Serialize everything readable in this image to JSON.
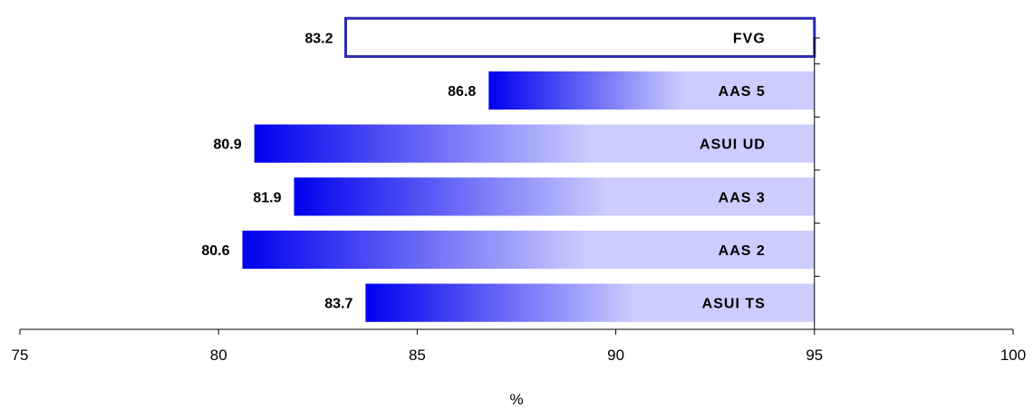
{
  "chart_data": {
    "type": "bar",
    "orientation": "horizontal",
    "categories": [
      "FVG",
      "AAS 5",
      "ASUI UD",
      "AAS 3",
      "AAS 2",
      "ASUI TS"
    ],
    "values": [
      83.2,
      86.8,
      80.9,
      81.9,
      80.6,
      83.7
    ],
    "value_labels": [
      "83.2",
      "86.8",
      "80.9",
      "81.9",
      "80.6",
      "83.7"
    ],
    "bar_end": 95,
    "xlim": [
      75,
      100
    ],
    "xticks": [
      75,
      80,
      85,
      90,
      95,
      100
    ],
    "xtick_labels": [
      "75",
      "80",
      "85",
      "90",
      "95",
      "100"
    ],
    "xlabel": "%",
    "ylabel": "",
    "title": "",
    "grid": false,
    "legend": "none",
    "highlight_category": "FVG",
    "colors": {
      "highlight_outline": "#2b2bb0",
      "highlight_fill": "#ffffff",
      "gradient_start": "#0000ee",
      "gradient_end": "#ccccff",
      "axis": "#000000"
    }
  }
}
